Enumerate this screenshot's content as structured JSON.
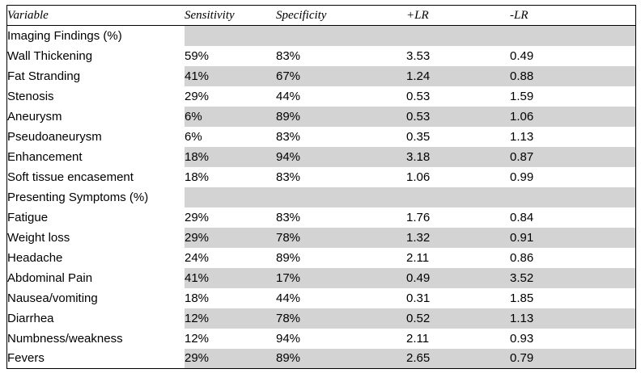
{
  "headers": [
    "Variable",
    "Sensitivity",
    "Specificity",
    "+LR",
    "-LR"
  ],
  "sections": [
    {
      "title": "Imaging Findings (%)",
      "rows": [
        {
          "label": "Wall Thickening",
          "sens": "59%",
          "spec": "83%",
          "plr": "3.53",
          "nlr": "0.49"
        },
        {
          "label": "Fat Stranding",
          "sens": "41%",
          "spec": "67%",
          "plr": "1.24",
          "nlr": "0.88"
        },
        {
          "label": "Stenosis",
          "sens": "29%",
          "spec": "44%",
          "plr": "0.53",
          "nlr": "1.59"
        },
        {
          "label": "Aneurysm",
          "sens": "6%",
          "spec": "89%",
          "plr": "0.53",
          "nlr": "1.06"
        },
        {
          "label": "Pseudoaneurysm",
          "sens": "6%",
          "spec": "83%",
          "plr": "0.35",
          "nlr": "1.13"
        },
        {
          "label": "Enhancement",
          "sens": "18%",
          "spec": "94%",
          "plr": "3.18",
          "nlr": "0.87"
        },
        {
          "label": "Soft tissue encasement",
          "sens": "18%",
          "spec": "83%",
          "plr": "1.06",
          "nlr": "0.99"
        }
      ]
    },
    {
      "title": "Presenting Symptoms (%)",
      "rows": [
        {
          "label": "Fatigue",
          "sens": "29%",
          "spec": "83%",
          "plr": "1.76",
          "nlr": "0.84"
        },
        {
          "label": "Weight loss",
          "sens": "29%",
          "spec": "78%",
          "plr": "1.32",
          "nlr": "0.91"
        },
        {
          "label": "Headache",
          "sens": "24%",
          "spec": "89%",
          "plr": "2.11",
          "nlr": "0.86"
        },
        {
          "label": "Abdominal Pain",
          "sens": "41%",
          "spec": "17%",
          "plr": "0.49",
          "nlr": "3.52"
        },
        {
          "label": "Nausea/vomiting",
          "sens": "18%",
          "spec": "44%",
          "plr": "0.31",
          "nlr": "1.85"
        },
        {
          "label": "Diarrhea",
          "sens": "12%",
          "spec": "78%",
          "plr": "0.52",
          "nlr": "1.13"
        },
        {
          "label": "Numbness/weakness",
          "sens": "12%",
          "spec": "94%",
          "plr": "2.11",
          "nlr": "0.93"
        },
        {
          "label": "Fevers",
          "sens": "29%",
          "spec": "89%",
          "plr": "2.65",
          "nlr": "0.79"
        }
      ]
    }
  ]
}
